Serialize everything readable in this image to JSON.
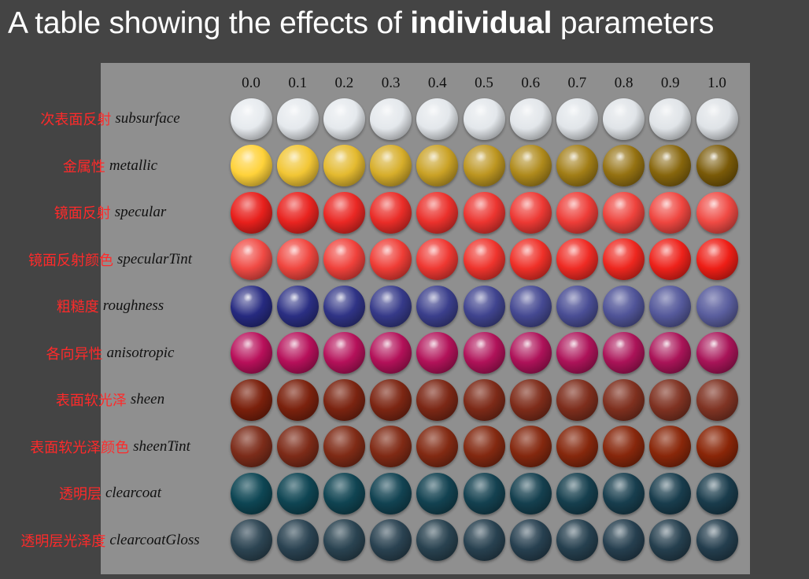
{
  "title": {
    "prefix": "A table showing the effects of ",
    "emphasis": "individual",
    "suffix": " parameters"
  },
  "columns": [
    "0.0",
    "0.1",
    "0.2",
    "0.3",
    "0.4",
    "0.5",
    "0.6",
    "0.7",
    "0.8",
    "0.9",
    "1.0"
  ],
  "rows": [
    {
      "cn": "次表面反射",
      "en": "subsurface",
      "color_from": "#e6eaee",
      "color_to": "#dfe3e7",
      "shine_from": 0.6,
      "shine_to": 0.5
    },
    {
      "cn": "金属性",
      "en": "metallic",
      "color_from": "#ffd23a",
      "color_to": "#7a5a08",
      "shine_from": 0.5,
      "shine_to": 0.9
    },
    {
      "cn": "镜面反射",
      "en": "specular",
      "color_from": "#e8201c",
      "color_to": "#f04a44",
      "shine_from": 0.2,
      "shine_to": 0.7
    },
    {
      "cn": "镜面反射颜色",
      "en": "specularTint",
      "color_from": "#f04a44",
      "color_to": "#ee1e16",
      "shine_from": 0.7,
      "shine_to": 0.5
    },
    {
      "cn": "粗糙度",
      "en": "roughness",
      "color_from": "#262a80",
      "color_to": "#5a5e9e",
      "shine_from": 0.9,
      "shine_to": 0.0
    },
    {
      "cn": "各向异性",
      "en": "anisotropic",
      "color_from": "#b8105a",
      "color_to": "#a81458",
      "shine_from": 0.7,
      "shine_to": 0.9
    },
    {
      "cn": "表面软光泽",
      "en": "sheen",
      "color_from": "#7a200c",
      "color_to": "#803424",
      "shine_from": 0.0,
      "shine_to": 0.0
    },
    {
      "cn": "表面软光泽颜色",
      "en": "sheenTint",
      "color_from": "#7c2c1a",
      "color_to": "#8a2608",
      "shine_from": 0.0,
      "shine_to": 0.0
    },
    {
      "cn": "透明层",
      "en": "clearcoat",
      "color_from": "#0e4654",
      "color_to": "#1a3c4c",
      "shine_from": 0.0,
      "shine_to": 0.4
    },
    {
      "cn": "透明层光泽度",
      "en": "clearcoatGloss",
      "color_from": "#2c4452",
      "color_to": "#243e4e",
      "shine_from": 0.0,
      "shine_to": 0.4
    }
  ]
}
